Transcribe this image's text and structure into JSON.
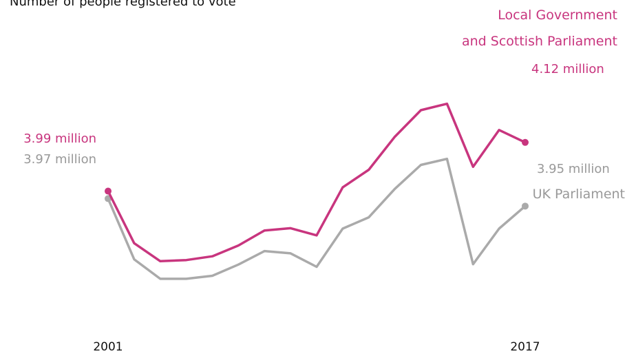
{
  "chart_data": {
    "type": "line",
    "title": "Number of people registered to vote",
    "x_tick_labels": [
      "2001",
      "2017"
    ],
    "x": [
      2001,
      2002,
      2003,
      2004,
      2005,
      2006,
      2007,
      2008,
      2009,
      2010,
      2011,
      2012,
      2013,
      2014,
      2015,
      2016,
      2017
    ],
    "series": [
      {
        "name_lines": [
          "Local Government",
          "and Scottish Parliament"
        ],
        "color": "#c8357e",
        "values": [
          3.99,
          3.851,
          3.803,
          3.806,
          3.816,
          3.845,
          3.885,
          3.891,
          3.872,
          4.0,
          4.047,
          4.135,
          4.206,
          4.223,
          4.055,
          4.153,
          4.12
        ],
        "start_label": "3.99 million",
        "end_label": "4.12 million"
      },
      {
        "name_lines": [
          "UK Parliament"
        ],
        "color": "#aaaaaa",
        "values": [
          3.97,
          3.808,
          3.756,
          3.756,
          3.764,
          3.794,
          3.83,
          3.824,
          3.788,
          3.89,
          3.92,
          3.996,
          4.06,
          4.076,
          3.795,
          3.89,
          3.95
        ],
        "start_label": "3.97 million",
        "end_label": "3.95 million"
      }
    ],
    "ylim": [
      3.55,
      4.5
    ],
    "grid": false,
    "legend": "direct labels"
  }
}
